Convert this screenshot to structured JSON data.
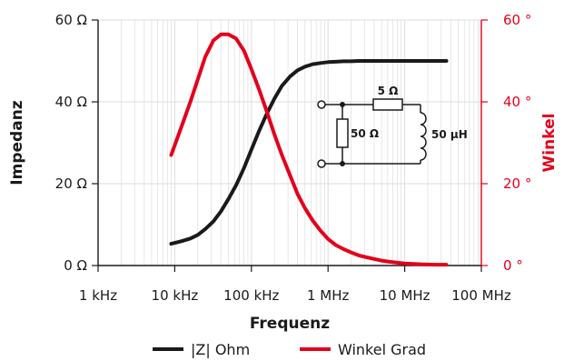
{
  "chart_data": {
    "type": "line",
    "xlabel": "Frequenz",
    "ylabel": "Impedanz",
    "ylabel_right": "Winkel",
    "x_scale": "log",
    "xlim": [
      1000,
      100000000
    ],
    "ylim": [
      0,
      60
    ],
    "ylim_right": [
      0,
      60
    ],
    "x_ticks": [
      "1 kHz",
      "10 kHz",
      "100 kHz",
      "1 MHz",
      "10 MHz",
      "100 MHz"
    ],
    "y_ticks": [
      "0 Ω",
      "20 Ω",
      "40 Ω",
      "60 Ω"
    ],
    "y_ticks_right": [
      "0 °",
      "20 °",
      "40 °",
      "60 °"
    ],
    "grid": true,
    "legend": "bottom",
    "colors": {
      "impedance": "#1a1a1a",
      "angle": "#e3001b",
      "grid": "#dddddd"
    },
    "series": [
      {
        "name": "|Z| Ohm",
        "axis": "left",
        "x": [
          9000,
          12000,
          16000,
          20000,
          25000,
          32000,
          40000,
          50000,
          63000,
          80000,
          100000,
          126000,
          160000,
          200000,
          250000,
          320000,
          400000,
          500000,
          630000,
          800000,
          1000000,
          1260000,
          1600000,
          2000000,
          2500000,
          3200000,
          4000000,
          5000000,
          6300000,
          8000000,
          10000000,
          16000000,
          25000000,
          35000000
        ],
        "values": [
          5.3,
          5.9,
          6.6,
          7.5,
          8.9,
          10.8,
          13.2,
          16.2,
          19.6,
          23.8,
          28.3,
          32.9,
          37.2,
          40.8,
          43.9,
          46.2,
          47.7,
          48.6,
          49.2,
          49.5,
          49.7,
          49.8,
          49.9,
          49.9,
          50.0,
          50.0,
          50.0,
          50.0,
          50.0,
          50.0,
          50.0,
          50.0,
          50.0,
          50.0
        ]
      },
      {
        "name": "Winkel Grad",
        "axis": "right",
        "x": [
          9000,
          12000,
          16000,
          20000,
          25000,
          32000,
          40000,
          50000,
          63000,
          80000,
          100000,
          126000,
          160000,
          200000,
          250000,
          320000,
          400000,
          500000,
          630000,
          800000,
          1000000,
          1260000,
          1600000,
          2000000,
          2500000,
          3200000,
          4000000,
          5000000,
          6300000,
          8000000,
          10000000,
          16000000,
          25000000,
          35000000
        ],
        "values": [
          27.0,
          33.5,
          40.0,
          45.5,
          51.0,
          55.0,
          56.5,
          56.5,
          55.5,
          52.5,
          48.0,
          43.0,
          37.5,
          32.0,
          27.0,
          22.0,
          17.5,
          14.0,
          11.0,
          8.5,
          6.5,
          5.0,
          4.0,
          3.2,
          2.5,
          2.0,
          1.6,
          1.2,
          0.9,
          0.7,
          0.5,
          0.3,
          0.2,
          0.2
        ]
      }
    ]
  },
  "circuit": {
    "series_resistor": "5 Ω",
    "parallel_resistor": "50 Ω",
    "inductor": "50 µH"
  }
}
